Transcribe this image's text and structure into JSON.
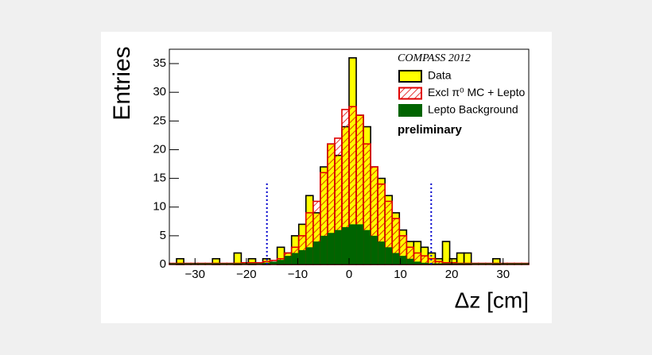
{
  "chart_data": {
    "type": "histogram",
    "xlabel": "Δz [cm]",
    "ylabel": "Entries",
    "legend_title": "COMPASS 2012",
    "annotation": "preliminary",
    "legend": "upper right",
    "bins": [
      -35,
      -33.6,
      -32.2,
      -30.8,
      -29.4,
      -28,
      -26.6,
      -25.2,
      -23.8,
      -22.4,
      -21,
      -19.6,
      -18.2,
      -16.8,
      -15.4,
      -14,
      -12.6,
      -11.2,
      -9.8,
      -8.4,
      -7,
      -5.6,
      -4.2,
      -2.8,
      -1.4,
      0,
      1.4,
      2.8,
      4.2,
      5.6,
      7,
      8.4,
      9.8,
      11.2,
      12.6,
      14,
      15.4,
      16.8,
      18.2,
      19.6,
      21,
      22.4,
      23.8,
      25.2,
      26.6,
      28,
      29.4,
      30.8,
      32.2,
      33.6,
      35
    ],
    "series": [
      {
        "name": "Data",
        "color": "#ffff00",
        "edge": "#000000",
        "style": "fill",
        "values": [
          0,
          1,
          0,
          0,
          0,
          0,
          1,
          0,
          0,
          2,
          0,
          1,
          0,
          1,
          0,
          3,
          2,
          5,
          7,
          12,
          9,
          17,
          21,
          19,
          24,
          36,
          26,
          24,
          17,
          15,
          12,
          9,
          6,
          4,
          4,
          3,
          2,
          1,
          4,
          1,
          2,
          2,
          0,
          0,
          0,
          1,
          0,
          0,
          0,
          0
        ]
      },
      {
        "name": "Excl π⁰ MC + Lepto",
        "color": "#e00000",
        "edge": "#e00000",
        "style": "hatch",
        "values": [
          0.2,
          0.2,
          0.2,
          0.2,
          0.2,
          0.2,
          0.2,
          0.2,
          0.2,
          0.2,
          0.3,
          0.3,
          0.3,
          0.5,
          0.7,
          1,
          2,
          3,
          5,
          9,
          11,
          16,
          21,
          22,
          27,
          27.5,
          26,
          21,
          17,
          14,
          11,
          8,
          5,
          3,
          2,
          1.5,
          1,
          0.5,
          0.3,
          0.3,
          0.2,
          0.2,
          0.2,
          0.2,
          0.2,
          0.2,
          0.2,
          0.2,
          0.2,
          0.2
        ]
      },
      {
        "name": "Lepto Background",
        "color": "#006400",
        "edge": "#006400",
        "style": "fill",
        "values": [
          0.2,
          0.2,
          0.2,
          0.2,
          0.2,
          0.2,
          0.2,
          0.2,
          0.2,
          0.2,
          0.2,
          0.2,
          0.2,
          0.3,
          0.5,
          0.8,
          1.5,
          2,
          2.5,
          3,
          4,
          5,
          5.5,
          6,
          6.5,
          7,
          7,
          6,
          5,
          4,
          3,
          2,
          1.5,
          1,
          0.5,
          0.3,
          0.2,
          0.2,
          0.2,
          0.2,
          0.2,
          0.2,
          0.2,
          0.2,
          0.2,
          0.2,
          0.2,
          0.2,
          0.2,
          0.2
        ]
      }
    ],
    "cut_lines": {
      "x": [
        -16,
        16
      ],
      "height": 14.5,
      "color": "#0000cc"
    },
    "xlim": [
      -35,
      35
    ],
    "ylim": [
      0,
      37.5
    ],
    "xticks": [
      {
        "value": -30,
        "label": "−30"
      },
      {
        "value": -20,
        "label": "−20"
      },
      {
        "value": -10,
        "label": "−10"
      },
      0,
      10,
      20,
      30
    ],
    "yticks": [
      0,
      5,
      10,
      15,
      20,
      25,
      30,
      35
    ]
  }
}
